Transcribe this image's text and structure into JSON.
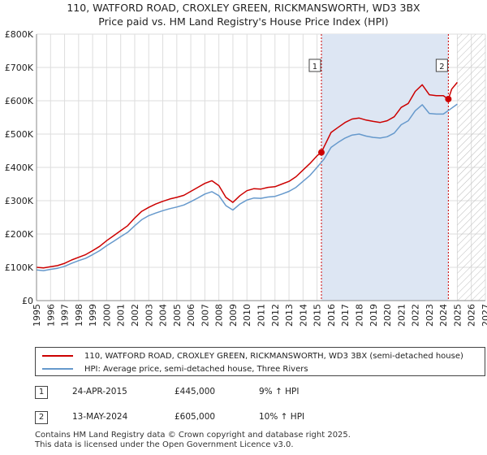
{
  "title_line1": "110, WATFORD ROAD, CROXLEY GREEN, RICKMANSWORTH, WD3 3BX",
  "title_line2": "Price paid vs. HM Land Registry's House Price Index (HPI)",
  "colors": {
    "property": "#cc0000",
    "hpi": "#6699cc",
    "band": "#dde6f3",
    "grid": "#dddddd",
    "marker_line": "#cc0000"
  },
  "chart_data": {
    "type": "line",
    "xlim": [
      1995,
      2027
    ],
    "ylim": [
      0,
      800000
    ],
    "x_ticks": [
      1995,
      1996,
      1997,
      1998,
      1999,
      2000,
      2001,
      2002,
      2003,
      2004,
      2005,
      2006,
      2007,
      2008,
      2009,
      2010,
      2011,
      2012,
      2013,
      2014,
      2015,
      2016,
      2017,
      2018,
      2019,
      2020,
      2021,
      2022,
      2023,
      2024,
      2025,
      2026,
      2027
    ],
    "x_tick_labels": [
      "1995",
      "1996",
      "1997",
      "1998",
      "1999",
      "2000",
      "2001",
      "2002",
      "2003",
      "2004",
      "2005",
      "2006",
      "2007",
      "2008",
      "2009",
      "2010",
      "2011",
      "2012",
      "2013",
      "2014",
      "2015",
      "2016",
      "2017",
      "2018",
      "2019",
      "2020",
      "2021",
      "2022",
      "2023",
      "2024",
      "2025",
      "2026",
      "2027"
    ],
    "y_ticks": [
      0,
      100000,
      200000,
      300000,
      400000,
      500000,
      600000,
      700000,
      800000
    ],
    "y_tick_labels": [
      "£0",
      "£100K",
      "£200K",
      "£300K",
      "£400K",
      "£500K",
      "£600K",
      "£700K",
      "£800K"
    ],
    "shaded_period": [
      2015.31,
      2024.36
    ],
    "forecast_hatch_from": 2025.0,
    "series": [
      {
        "name": "110, WATFORD ROAD, CROXLEY GREEN, RICKMANSWORTH, WD3 3BX (semi-detached house)",
        "color": "#cc0000",
        "x": [
          1995,
          1995.5,
          1996,
          1996.5,
          1997,
          1997.5,
          1998,
          1998.5,
          1999,
          1999.5,
          2000,
          2000.5,
          2001,
          2001.5,
          2002,
          2002.5,
          2003,
          2003.5,
          2004,
          2004.5,
          2005,
          2005.5,
          2006,
          2006.5,
          2007,
          2007.5,
          2008,
          2008.5,
          2009,
          2009.5,
          2010,
          2010.5,
          2011,
          2011.5,
          2012,
          2012.5,
          2013,
          2013.5,
          2014,
          2014.5,
          2015,
          2015.31,
          2015.5,
          2016,
          2016.5,
          2017,
          2017.5,
          2018,
          2018.5,
          2019,
          2019.5,
          2020,
          2020.5,
          2021,
          2021.5,
          2022,
          2022.5,
          2023,
          2023.5,
          2024,
          2024.36,
          2024.6,
          2025
        ],
        "y": [
          100000,
          98000,
          102000,
          105000,
          112000,
          122000,
          130000,
          138000,
          150000,
          163000,
          180000,
          195000,
          210000,
          225000,
          248000,
          268000,
          280000,
          290000,
          298000,
          305000,
          310000,
          316000,
          328000,
          340000,
          352000,
          360000,
          345000,
          310000,
          295000,
          315000,
          330000,
          336000,
          335000,
          340000,
          342000,
          350000,
          358000,
          372000,
          392000,
          412000,
          435000,
          445000,
          462000,
          505000,
          520000,
          535000,
          545000,
          548000,
          542000,
          538000,
          535000,
          540000,
          552000,
          580000,
          592000,
          628000,
          648000,
          618000,
          615000,
          615000,
          605000,
          635000,
          655000
        ]
      },
      {
        "name": "HPI: Average price, semi-detached house, Three Rivers",
        "color": "#6699cc",
        "x": [
          1995,
          1995.5,
          1996,
          1996.5,
          1997,
          1997.5,
          1998,
          1998.5,
          1999,
          1999.5,
          2000,
          2000.5,
          2001,
          2001.5,
          2002,
          2002.5,
          2003,
          2003.5,
          2004,
          2004.5,
          2005,
          2005.5,
          2006,
          2006.5,
          2007,
          2007.5,
          2008,
          2008.5,
          2009,
          2009.5,
          2010,
          2010.5,
          2011,
          2011.5,
          2012,
          2012.5,
          2013,
          2013.5,
          2014,
          2014.5,
          2015,
          2015.5,
          2016,
          2016.5,
          2017,
          2017.5,
          2018,
          2018.5,
          2019,
          2019.5,
          2020,
          2020.5,
          2021,
          2021.5,
          2022,
          2022.5,
          2023,
          2023.5,
          2024,
          2024.5,
          2025
        ],
        "y": [
          92000,
          90000,
          94000,
          97000,
          103000,
          112000,
          120000,
          127000,
          138000,
          150000,
          165000,
          178000,
          192000,
          205000,
          225000,
          243000,
          255000,
          263000,
          270000,
          276000,
          281000,
          287000,
          297000,
          308000,
          320000,
          327000,
          315000,
          285000,
          272000,
          290000,
          302000,
          308000,
          307000,
          311000,
          313000,
          320000,
          328000,
          340000,
          358000,
          376000,
          400000,
          425000,
          460000,
          475000,
          488000,
          497000,
          500000,
          494000,
          490000,
          488000,
          492000,
          503000,
          528000,
          540000,
          570000,
          588000,
          562000,
          560000,
          560000,
          575000,
          590000
        ]
      }
    ],
    "sale_markers": [
      {
        "label": "1",
        "x": 2015.31,
        "y": 445000
      },
      {
        "label": "2",
        "x": 2024.36,
        "y": 605000
      }
    ]
  },
  "legend": {
    "property_label": "110, WATFORD ROAD, CROXLEY GREEN, RICKMANSWORTH, WD3 3BX (semi-detached house)",
    "hpi_label": "HPI: Average price, semi-detached house, Three Rivers"
  },
  "transactions": [
    {
      "num": "1",
      "date": "24-APR-2015",
      "price": "£445,000",
      "hpi": "9% ↑ HPI"
    },
    {
      "num": "2",
      "date": "13-MAY-2024",
      "price": "£605,000",
      "hpi": "10% ↑ HPI"
    }
  ],
  "footer_line1": "Contains HM Land Registry data © Crown copyright and database right 2025.",
  "footer_line2": "This data is licensed under the Open Government Licence v3.0."
}
